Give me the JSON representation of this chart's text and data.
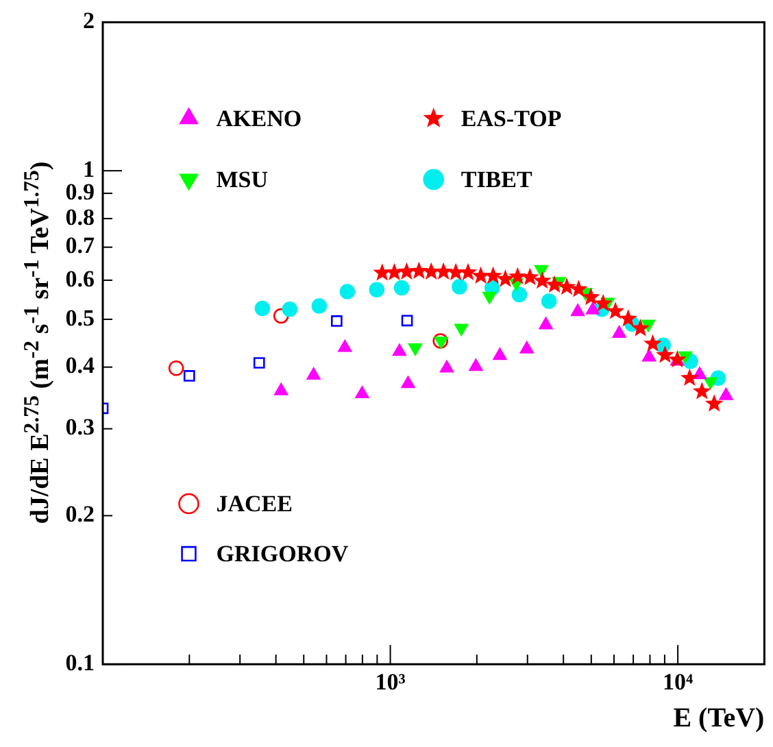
{
  "chart_data": {
    "type": "scatter",
    "xlabel": "E (TeV)",
    "ylabel": "dJ/dE E$^{2.75}$ (m$^{-2}$ s$^{-1}$ sr$^{-1}$ TeV$^{1.75}$)",
    "log": "xy",
    "grid": false,
    "legend": "top left",
    "xlim": [
      100,
      20000
    ],
    "ylim": [
      0.1,
      2
    ],
    "xticks": [
      {
        "value": 200,
        "label": null
      },
      {
        "value": 300,
        "label": null
      },
      {
        "value": 400,
        "label": null
      },
      {
        "value": 500,
        "label": null
      },
      {
        "value": 600,
        "label": null
      },
      {
        "value": 700,
        "label": null
      },
      {
        "value": 800,
        "label": null
      },
      {
        "value": 900,
        "label": null
      },
      {
        "value": 1000,
        "label": "10³"
      },
      {
        "value": 2000,
        "label": null
      },
      {
        "value": 3000,
        "label": null
      },
      {
        "value": 4000,
        "label": null
      },
      {
        "value": 5000,
        "label": null
      },
      {
        "value": 6000,
        "label": null
      },
      {
        "value": 7000,
        "label": null
      },
      {
        "value": 8000,
        "label": null
      },
      {
        "value": 9000,
        "label": null
      },
      {
        "value": 10000,
        "label": "10⁴"
      }
    ],
    "yticks": [
      0.1,
      0.2,
      0.3,
      0.4,
      0.5,
      0.6,
      0.7,
      0.8,
      0.9,
      1,
      2
    ],
    "series": [
      {
        "name": "AKENO",
        "color": "#ff00ff",
        "marker": "triangle",
        "x": [
          417,
          541,
          695,
          798,
          1076,
          1153,
          1572,
          1984,
          2404,
          2984,
          3476,
          4487,
          5061,
          6255,
          7945,
          9950,
          11910,
          14710
        ],
        "values": [
          0.358,
          0.385,
          0.438,
          0.353,
          0.43,
          0.37,
          0.398,
          0.401,
          0.422,
          0.435,
          0.487,
          0.518,
          0.522,
          0.468,
          0.419,
          0.411,
          0.386,
          0.35
        ]
      },
      {
        "name": "EAS-TOP",
        "color": "#ff0000",
        "marker": "star",
        "x": [
          937,
          1033,
          1140,
          1258,
          1388,
          1531,
          1690,
          1864,
          2064,
          2278,
          2513,
          2773,
          3060,
          3376,
          3724,
          4110,
          4519,
          4985,
          5500,
          6068,
          6721,
          7413,
          8180,
          9027,
          9960,
          10990,
          12130,
          13380
        ],
        "values": [
          0.621,
          0.622,
          0.624,
          0.626,
          0.624,
          0.624,
          0.622,
          0.622,
          0.612,
          0.612,
          0.603,
          0.61,
          0.608,
          0.598,
          0.587,
          0.581,
          0.575,
          0.554,
          0.538,
          0.519,
          0.501,
          0.479,
          0.446,
          0.423,
          0.414,
          0.38,
          0.357,
          0.337
        ]
      },
      {
        "name": "MSU",
        "color": "#00ff00",
        "marker": "triangle-down",
        "x": [
          1221,
          1503,
          1766,
          2212,
          2742,
          3353,
          3864,
          4772,
          5705,
          7888,
          10630,
          13000
        ],
        "values": [
          0.438,
          0.452,
          0.48,
          0.557,
          0.593,
          0.631,
          0.597,
          0.567,
          0.542,
          0.489,
          0.422,
          0.374
        ]
      },
      {
        "name": "TIBET",
        "color": "#00eeee",
        "marker": "circle",
        "x": [
          359,
          447,
          566,
          709,
          897,
          1095,
          1740,
          2262,
          2812,
          3564,
          5441,
          6940,
          8893,
          11070,
          13820
        ],
        "values": [
          0.526,
          0.524,
          0.532,
          0.569,
          0.574,
          0.579,
          0.582,
          0.579,
          0.561,
          0.544,
          0.524,
          0.489,
          0.443,
          0.411,
          0.38
        ]
      },
      {
        "name": "JACEE",
        "color": "#ff0000",
        "marker": "circle-open",
        "x": [
          180,
          417,
          1494
        ],
        "values": [
          0.398,
          0.508,
          0.452
        ]
      },
      {
        "name": "GRIGOROV",
        "color": "#0000ff",
        "marker": "square-open",
        "x": [
          100,
          200,
          350,
          651,
          1144
        ],
        "values": [
          0.33,
          0.384,
          0.408,
          0.496,
          0.497
        ]
      }
    ]
  }
}
